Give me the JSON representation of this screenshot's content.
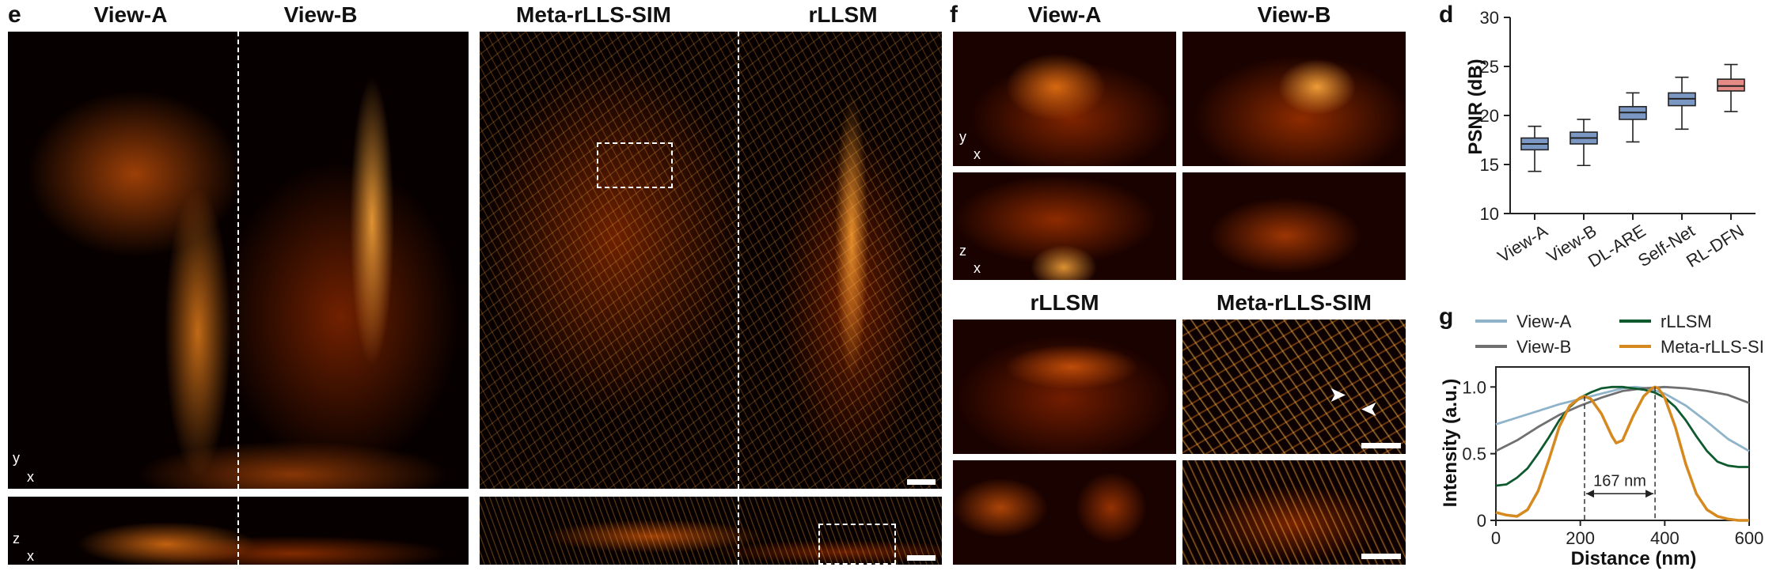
{
  "panels": {
    "e": {
      "letter": "e",
      "titles": [
        "View-A",
        "View-B",
        "Meta-rLLS-SIM",
        "rLLSM"
      ],
      "axes_xy": {
        "v": "y",
        "h": "x"
      },
      "axes_xz": {
        "v": "z",
        "h": "x"
      }
    },
    "f": {
      "letter": "f",
      "titles_top": [
        "View-A",
        "View-B"
      ],
      "titles_bottom": [
        "rLLSM",
        "Meta-rLLS-SIM"
      ],
      "axes_xy": {
        "v": "y",
        "h": "x"
      },
      "axes_xz": {
        "v": "z",
        "h": "x"
      }
    },
    "d": {
      "letter": "d"
    },
    "g": {
      "letter": "g"
    }
  },
  "colors": {
    "hot_dark": "#070000",
    "hot_mid": "#b23a00",
    "hot_bright": "#ff9a2a",
    "box_blue": "#7b97c3",
    "box_red": "#e58a85",
    "view_a": "#8fb3c9",
    "view_b": "#707070",
    "rllsm": "#0e5a2e",
    "meta": "#d6891f"
  },
  "chart_data": [
    {
      "type": "box",
      "categories": [
        "View-A",
        "View-B",
        "DL-ARE",
        "Self-Net",
        "RL-DFN"
      ],
      "ylabel": "PSNR (dB)",
      "ylim": [
        10,
        30
      ],
      "yticks": [
        10,
        15,
        20,
        25,
        30
      ],
      "boxes": [
        {
          "min": 14.3,
          "q1": 16.5,
          "median": 17.1,
          "q3": 17.7,
          "max": 18.9
        },
        {
          "min": 14.9,
          "q1": 17.1,
          "median": 17.7,
          "q3": 18.3,
          "max": 19.6
        },
        {
          "min": 17.3,
          "q1": 19.6,
          "median": 20.3,
          "q3": 20.9,
          "max": 22.3
        },
        {
          "min": 18.6,
          "q1": 21.0,
          "median": 21.7,
          "q3": 22.3,
          "max": 23.9
        },
        {
          "min": 20.4,
          "q1": 22.5,
          "median": 23.0,
          "q3": 23.7,
          "max": 25.2
        }
      ],
      "box_colors": [
        "#7b97c3",
        "#7b97c3",
        "#7b97c3",
        "#7b97c3",
        "#e58a85"
      ]
    },
    {
      "type": "line",
      "xlabel": "Distance (nm)",
      "ylabel": "Intensity (a.u.)",
      "xlim": [
        0,
        600
      ],
      "ylim": [
        0,
        1.15
      ],
      "xticks": [
        0,
        200,
        400,
        600
      ],
      "yticks": [
        0,
        0.5,
        1.0
      ],
      "ytick_labels": [
        "0",
        "0.5",
        "1.0"
      ],
      "legend": [
        "View-A",
        "rLLSM",
        "View-B",
        "Meta-rLLS-SIM"
      ],
      "annotation": {
        "text": "167 nm",
        "x1": 210,
        "x2": 377
      },
      "series": [
        {
          "name": "View-A",
          "color": "#8fb3c9",
          "x": [
            0,
            50,
            100,
            150,
            200,
            250,
            300,
            330,
            360,
            400,
            450,
            500,
            550,
            600
          ],
          "y": [
            0.72,
            0.77,
            0.82,
            0.87,
            0.91,
            0.95,
            0.99,
            1.0,
            0.99,
            0.95,
            0.86,
            0.74,
            0.61,
            0.52
          ]
        },
        {
          "name": "View-B",
          "color": "#707070",
          "x": [
            0,
            50,
            100,
            150,
            200,
            250,
            300,
            350,
            400,
            450,
            500,
            550,
            600
          ],
          "y": [
            0.52,
            0.6,
            0.7,
            0.79,
            0.86,
            0.92,
            0.97,
            0.99,
            1.0,
            0.99,
            0.97,
            0.94,
            0.88
          ]
        },
        {
          "name": "rLLSM",
          "color": "#0e5a2e",
          "x": [
            0,
            25,
            50,
            75,
            100,
            125,
            150,
            175,
            200,
            225,
            250,
            275,
            300,
            325,
            350,
            375,
            400,
            425,
            450,
            475,
            500,
            525,
            550,
            575,
            600
          ],
          "y": [
            0.26,
            0.27,
            0.32,
            0.39,
            0.5,
            0.62,
            0.75,
            0.85,
            0.92,
            0.96,
            0.99,
            1.0,
            1.0,
            0.99,
            0.98,
            0.96,
            0.92,
            0.85,
            0.75,
            0.63,
            0.52,
            0.44,
            0.41,
            0.4,
            0.4
          ]
        },
        {
          "name": "Meta-rLLS-SIM",
          "color": "#d6891f",
          "x": [
            0,
            25,
            50,
            75,
            100,
            125,
            150,
            175,
            200,
            210,
            225,
            250,
            275,
            285,
            300,
            325,
            350,
            370,
            377,
            385,
            400,
            425,
            450,
            475,
            500,
            525,
            550,
            575,
            600
          ],
          "y": [
            0.06,
            0.04,
            0.03,
            0.08,
            0.22,
            0.45,
            0.7,
            0.86,
            0.92,
            0.93,
            0.91,
            0.8,
            0.63,
            0.58,
            0.6,
            0.78,
            0.93,
            0.99,
            1.0,
            0.99,
            0.92,
            0.7,
            0.42,
            0.2,
            0.08,
            0.03,
            0.01,
            0.0,
            0.0
          ]
        }
      ]
    }
  ]
}
